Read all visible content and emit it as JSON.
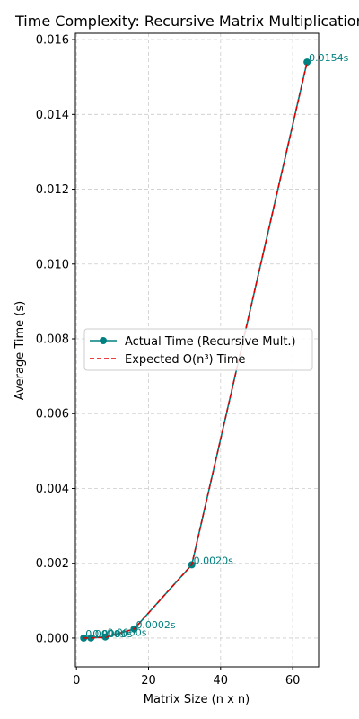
{
  "chart_data": {
    "type": "line",
    "title": "Time Complexity: Recursive Matrix Multiplication",
    "xlabel": "Matrix Size (n x n)",
    "ylabel": "Average Time (s)",
    "xlim": [
      -0.3,
      67.2
    ],
    "ylim": [
      -0.00077,
      0.01617
    ],
    "x_ticks": [
      0,
      20,
      40,
      60
    ],
    "x_tick_labels": [
      "0",
      "20",
      "40",
      "60"
    ],
    "y_ticks": [
      0.0,
      0.002,
      0.004,
      0.006,
      0.008,
      0.01,
      0.012,
      0.014,
      0.016
    ],
    "y_tick_labels": [
      "0.000",
      "0.002",
      "0.004",
      "0.006",
      "0.008",
      "0.010",
      "0.012",
      "0.014",
      "0.016"
    ],
    "grid": true,
    "legend_position": "center-left",
    "x": [
      2,
      4,
      8,
      16,
      32,
      64
    ],
    "series": [
      {
        "name": "Actual Time (Recursive Mult.)",
        "values": [
          5e-07,
          3.5e-06,
          3e-05,
          0.000243,
          0.0019604,
          0.0153986
        ],
        "color": "#008080",
        "style": "solid",
        "marker": "circle"
      },
      {
        "name": "Expected O(n³) Time",
        "values": [
          3e-07,
          2.4e-06,
          1.93e-05,
          0.0002415,
          0.0019604,
          0.0153986
        ],
        "color": "#e00000",
        "style": "dashed",
        "marker": "none"
      }
    ],
    "data_labels": [
      "0.0000s",
      "0.0000s",
      "0.0000s",
      "0.0002s",
      "0.0020s",
      "0.0154s"
    ]
  }
}
